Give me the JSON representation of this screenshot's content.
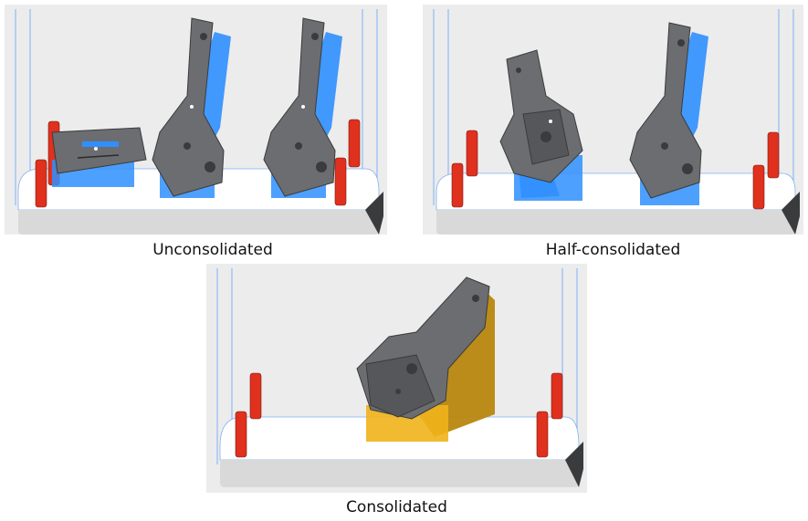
{
  "panels": [
    {
      "id": "unconsolidated",
      "caption": "Unconsolidated",
      "support_color": "#2f8fff"
    },
    {
      "id": "half-consolidated",
      "caption": "Half-consolidated",
      "support_color": "#2f8fff"
    },
    {
      "id": "consolidated",
      "caption": "Consolidated",
      "support_color": "#f0b21b"
    }
  ],
  "colors": {
    "background": "#ececec",
    "build_plate_top": "#ffffff",
    "build_plate_side": "#d9d9d9",
    "build_volume_lines": "#7fb0f5",
    "part_metal": "#6b6d70",
    "part_edge": "#3a3b3d",
    "pin_red": "#e0301e"
  }
}
